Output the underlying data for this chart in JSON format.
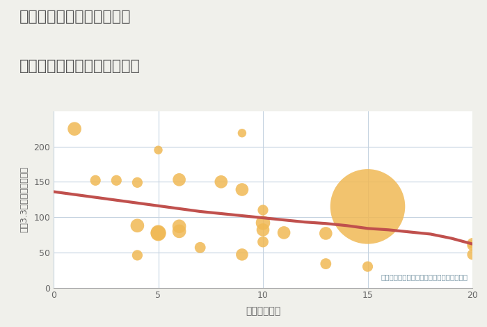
{
  "title_line1": "兵庫県丹波市春日町朝日の",
  "title_line2": "駅距離別中古マンション価格",
  "xlabel": "駅距離（分）",
  "ylabel": "坪（3.3㎡）単価（万円）",
  "annotation": "円の大きさは、取引のあった物件面積を示す",
  "bg_color": "#f0f0eb",
  "plot_bg_color": "#ffffff",
  "scatter_color": "#f0b955",
  "scatter_alpha": 0.85,
  "line_color": "#c0504d",
  "line_width": 3.0,
  "grid_color": "#c5d3e0",
  "xlim": [
    0,
    20
  ],
  "ylim": [
    0,
    250
  ],
  "xticks": [
    0,
    5,
    10,
    15,
    20
  ],
  "yticks": [
    0,
    50,
    100,
    150,
    200
  ],
  "scatter_x": [
    1,
    2,
    3,
    4,
    4,
    4,
    5,
    5,
    5,
    6,
    6,
    6,
    7,
    8,
    9,
    9,
    9,
    10,
    10,
    10,
    10,
    11,
    13,
    13,
    15,
    20,
    20,
    20
  ],
  "scatter_y": [
    225,
    152,
    152,
    149,
    88,
    46,
    195,
    78,
    77,
    153,
    87,
    80,
    57,
    150,
    219,
    139,
    47,
    110,
    92,
    82,
    65,
    78,
    77,
    34,
    30,
    60,
    63,
    47
  ],
  "scatter_size": [
    200,
    120,
    120,
    120,
    200,
    120,
    80,
    250,
    250,
    180,
    200,
    200,
    130,
    180,
    80,
    180,
    160,
    120,
    220,
    180,
    130,
    180,
    180,
    130,
    120,
    120,
    120,
    120
  ],
  "big_bubble_x": 15,
  "big_bubble_y": 115,
  "big_bubble_size": 6000,
  "trend_x": [
    0,
    0.5,
    1,
    2,
    3,
    4,
    5,
    6,
    7,
    8,
    9,
    10,
    11,
    12,
    13,
    14,
    15,
    16,
    17,
    18,
    19,
    20
  ],
  "trend_y": [
    136,
    134,
    132,
    128,
    124,
    120,
    116,
    112,
    108,
    105,
    102,
    99,
    96,
    93,
    91,
    88,
    84,
    82,
    79,
    76,
    70,
    62
  ]
}
